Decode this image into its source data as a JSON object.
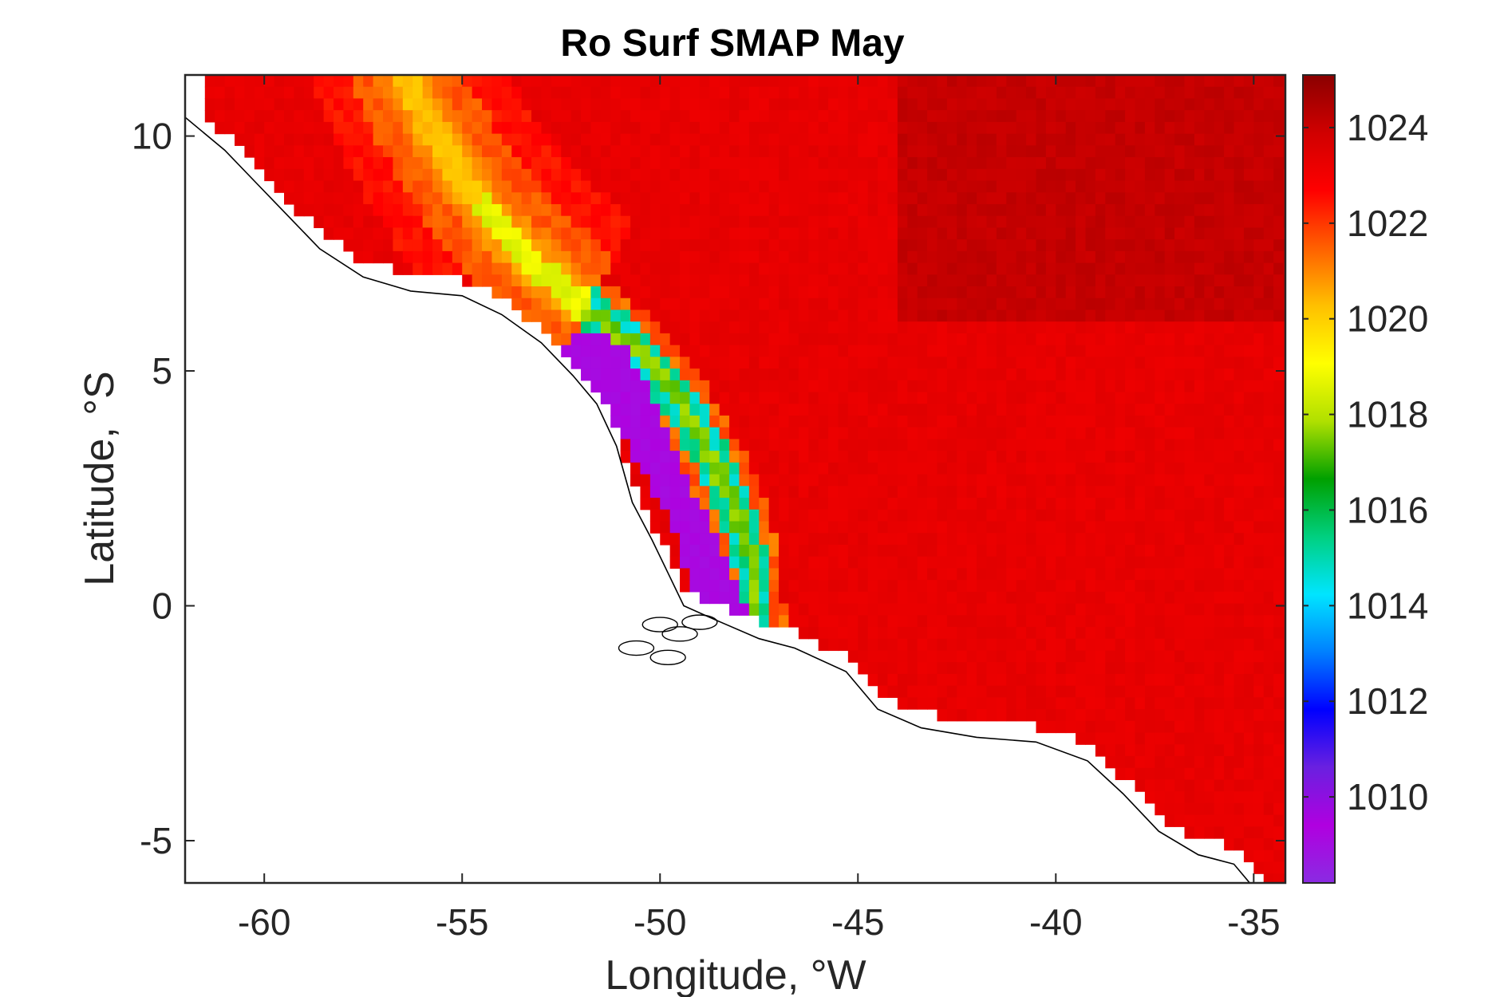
{
  "chart_data": {
    "type": "heatmap",
    "title": "Ro Surf SMAP May",
    "xlabel": "Longitude, °W",
    "ylabel": "Latitude, °S",
    "xlim": [
      -62,
      -34.2
    ],
    "ylim": [
      -5.9,
      11.3
    ],
    "x_ticks": [
      -60,
      -55,
      -50,
      -45,
      -40,
      -35
    ],
    "y_ticks": [
      -5,
      0,
      5,
      10
    ],
    "colorbar": {
      "range": [
        1008.2,
        1025.1
      ],
      "ticks": [
        1010,
        1012,
        1014,
        1016,
        1018,
        1020,
        1022,
        1024
      ]
    },
    "grid_resolution_deg": 0.25,
    "colormap": [
      "#8a2be2",
      "#b000e0",
      "#6a20e0",
      "#0000ff",
      "#0080ff",
      "#00e5ff",
      "#00d080",
      "#00a000",
      "#b0e000",
      "#ffff00",
      "#ffc000",
      "#ff6000",
      "#ff0000",
      "#d00000",
      "#8b0000"
    ],
    "field_summary": {
      "background_open_ocean": 1023.3,
      "northeast_open_ocean": 1024.3,
      "amazon_plume_core": 1009.2,
      "plume_gradient": [
        1013,
        1015,
        1017,
        1018.5,
        1020,
        1021.5,
        1022.5
      ],
      "north_plume_branch_min": 1018.3,
      "north_plume_branch_yellow": 1020
    },
    "map": {
      "land_color": "#ffffff",
      "coastline_color": "#000000"
    }
  }
}
